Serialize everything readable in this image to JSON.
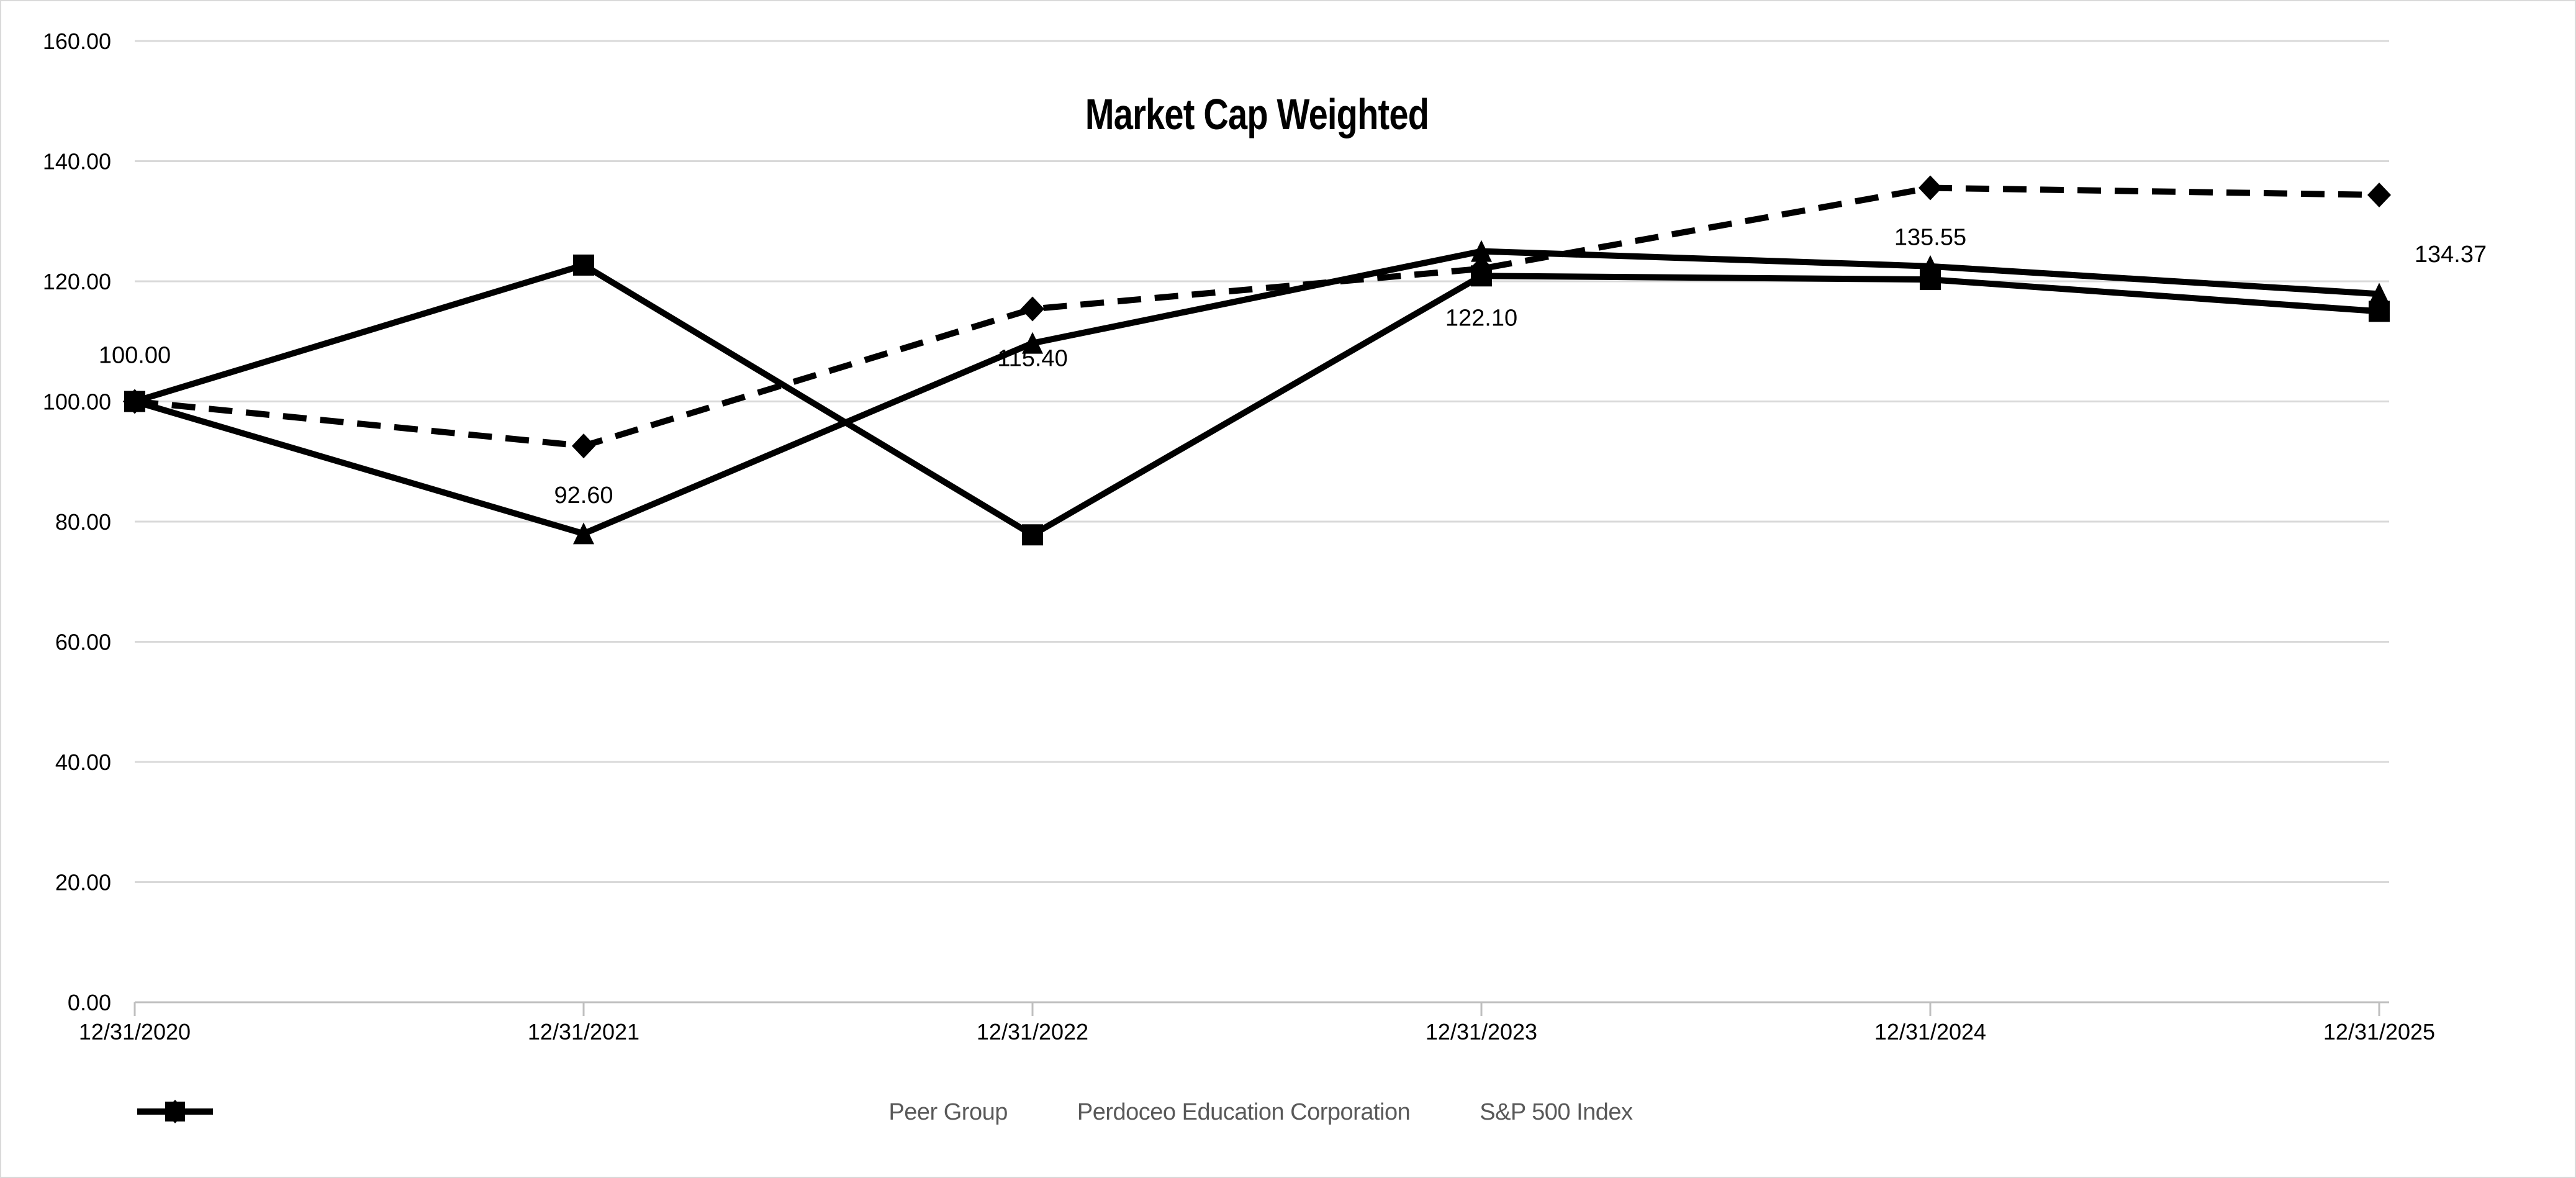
{
  "chart_data": {
    "type": "line",
    "title": "Market Cap Weighted",
    "x_categories": [
      "12/31/2020",
      "12/31/2021",
      "12/31/2022",
      "12/31/2023",
      "12/31/2024",
      "12/31/2025"
    ],
    "y_ticks": [
      "0.00",
      "20.00",
      "40.00",
      "60.00",
      "80.00",
      "100.00",
      "120.00",
      "140.00",
      "160.00"
    ],
    "ylim": [
      0,
      160
    ],
    "y_major_step": 20,
    "grid": true,
    "legend_position": "bottom",
    "series": [
      {
        "name": "Peer Group",
        "marker": "triangle",
        "line_style": "solid",
        "color": "#000000",
        "values": [
          100.0,
          78.0,
          109.7,
          125.0,
          122.5,
          117.9
        ]
      },
      {
        "name": "Perdoceo Education Corporation",
        "marker": "diamond",
        "line_style": "dashed",
        "color": "#000000",
        "values": [
          100.0,
          92.6,
          115.4,
          122.1,
          135.55,
          134.37
        ],
        "data_labels": [
          {
            "text": "100.00",
            "placement": "above"
          },
          {
            "text": "92.60",
            "placement": "below"
          },
          {
            "text": "115.40",
            "placement": "below"
          },
          {
            "text": "122.10",
            "placement": "below"
          },
          {
            "text": "135.55",
            "placement": "below"
          },
          {
            "text": "134.37",
            "placement": "below-right"
          }
        ]
      },
      {
        "name": "S&P 500 Index",
        "marker": "square",
        "line_style": "solid",
        "color": "#000000",
        "values": [
          100.0,
          122.7,
          77.8,
          120.9,
          120.3,
          115.0
        ]
      }
    ],
    "colors": {
      "background": "#FFFFFF",
      "chart_border": "#D9D9D9",
      "gridline": "#D9D9D9",
      "axis_line": "#BFBFBF",
      "axis_text": "#000000",
      "data_label_text": "#000000",
      "legend_text": "#595959",
      "series": "#000000"
    }
  }
}
